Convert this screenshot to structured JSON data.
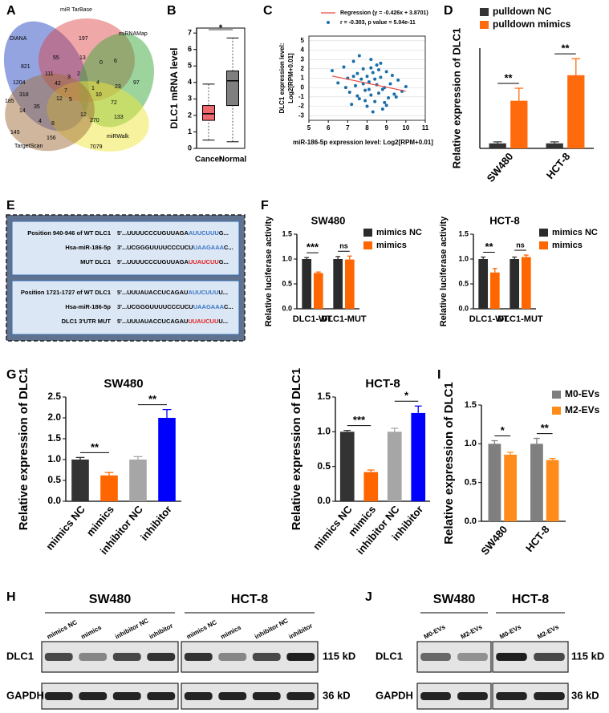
{
  "panel_labels": [
    "A",
    "B",
    "C",
    "D",
    "E",
    "F",
    "G",
    "H",
    "I",
    "J"
  ],
  "venn": {
    "sets": [
      "DIANA",
      "miR TarBase",
      "miRNAMap",
      "miRWalk",
      "TargetScan"
    ],
    "counts": [
      821,
      197,
      55,
      13,
      0,
      6,
      1204,
      111,
      2,
      4,
      97,
      23,
      42,
      3,
      7,
      1,
      185,
      318,
      5,
      10,
      72,
      14,
      35,
      12,
      4,
      8,
      12,
      270,
      133,
      145,
      156,
      7079
    ]
  },
  "sequences": [
    {
      "rows": [
        {
          "label": "Position 940-946 of WT DLC1",
          "parts": [
            "5'...UUUUCCCUGUUAGA",
            "AUUCUUU",
            "G..."
          ],
          "site_color": "#3a74c4"
        },
        {
          "label": "Hsa-miR-186-5p",
          "parts": [
            "3'...UCGGGUUUUCCCUCU",
            "UAAGAAA",
            "C..."
          ],
          "site_color": "#3a74c4"
        },
        {
          "label": "MUT DLC1",
          "parts": [
            "5'...UUUUCCCUGUUAGA",
            "UUAUCUU",
            "G..."
          ],
          "site_color": "#e02020"
        }
      ]
    },
    {
      "rows": [
        {
          "label": "Position 1721-1727 of WT DLC1",
          "parts": [
            "5'...UUUAUACCUCAGAU",
            "AUUCUUU",
            "U..."
          ],
          "site_color": "#3a74c4"
        },
        {
          "label": "Hsa-miR-186-5p",
          "parts": [
            "3'...UCGGGUUUUCCCUCU",
            "UAAGAAA",
            "C..."
          ],
          "site_color": "#3a74c4"
        },
        {
          "label": "DLC1 3'UTR MUT",
          "parts": [
            "5'...UUUAUACCUCAGAU",
            "UUAUCUU",
            "U..."
          ],
          "site_color": "#e02020"
        }
      ]
    }
  ],
  "chart_data": [
    {
      "type": "box",
      "ylabel": "DLC1 mRNA level",
      "categories": [
        "Cancer",
        "Normal"
      ],
      "colors": [
        "#f0696e",
        "#7f7f7f"
      ],
      "boxes": [
        {
          "min": 0.5,
          "q1": 1.7,
          "median": 2.1,
          "q3": 2.6,
          "max": 3.9
        },
        {
          "min": 0.4,
          "q1": 2.6,
          "median": 4.1,
          "q3": 4.7,
          "max": 6.7
        }
      ],
      "ylim": [
        0,
        7.3
      ],
      "yticks": [
        0,
        1,
        2,
        3,
        4,
        5,
        6,
        7
      ],
      "significance": "*",
      "significance_color": "#e02020"
    },
    {
      "type": "scatter",
      "xlabel": "miR-186-5p expression level: Log2[RPM+0.01]",
      "ylabel": [
        "DLC1 expression level:",
        "Log2[RPM+0.01]"
      ],
      "legend": [
        "Regression (y = -0.426x + 3.8701)",
        "r = -0.303, p value = 5.04e-11"
      ],
      "regression": {
        "slope": -0.426,
        "intercept": 3.8701,
        "color": "#e8473c"
      },
      "color": "#1a6fa8",
      "x": [
        6.2,
        6.5,
        6.8,
        7.0,
        7.1,
        7.3,
        7.4,
        7.5,
        7.6,
        7.7,
        7.8,
        7.9,
        8.0,
        8.0,
        8.1,
        8.2,
        8.2,
        8.3,
        8.4,
        8.5,
        8.5,
        8.6,
        8.7,
        8.8,
        8.9,
        9.0,
        9.1,
        9.2,
        9.4,
        9.6,
        9.8,
        10.0,
        7.2,
        7.6,
        7.9,
        8.3,
        8.6,
        8.9,
        9.3,
        6.9,
        7.5,
        8.1,
        8.7,
        9.0,
        7.8,
        8.4,
        8.8,
        7.3,
        9.5,
        8.2
      ],
      "y": [
        1.8,
        0.5,
        2.2,
        1.0,
        -0.5,
        2.8,
        0.2,
        1.5,
        -1.2,
        0.9,
        2.0,
        -0.3,
        1.2,
        -2.0,
        0.6,
        3.0,
        -0.8,
        1.6,
        -1.5,
        0.3,
        2.4,
        -0.6,
        1.1,
        -2.3,
        0.0,
        1.7,
        -1.1,
        0.4,
        -0.7,
        0.8,
        -0.4,
        0.1,
        -1.8,
        3.4,
        -1.4,
        -2.6,
        1.9,
        -1.6,
        1.3,
        0.0,
        -0.9,
        -0.2,
        2.6,
        -1.9,
        0.4,
        0.9,
        -0.2,
        1.2,
        -1.0,
        2.1
      ],
      "xlim": [
        5,
        11
      ],
      "xticks": [
        5,
        6,
        7,
        8,
        9,
        10,
        11
      ],
      "ylim": [
        -3.5,
        5.5
      ],
      "yticks": [
        -3,
        -2,
        -1,
        0,
        1,
        2,
        3,
        4,
        5
      ],
      "grid": true
    },
    {
      "type": "bar",
      "ylabel": "Relative expression of DLC1",
      "categories": [
        "SW480",
        "HCT-8"
      ],
      "series": [
        {
          "name": "pulldown NC",
          "color": "#333333",
          "values": [
            1.0,
            1.0
          ],
          "errors": [
            0.3,
            0.3
          ]
        },
        {
          "name": "pulldown mimics",
          "color": "#ff6a0d",
          "values": [
            9.5,
            14.6
          ],
          "errors": [
            2.5,
            3.3
          ]
        }
      ],
      "ylim": [
        0,
        20
      ],
      "significance": [
        "**",
        "**"
      ]
    },
    {
      "type": "bar",
      "title": "SW480",
      "ylabel": "Relative luciferase activity",
      "categories": [
        "DLC1-WT",
        "DLC1-MUT"
      ],
      "series": [
        {
          "name": "mimics NC",
          "color": "#2b2b2b",
          "values": [
            1.0,
            1.0
          ],
          "errors": [
            0.03,
            0.05
          ]
        },
        {
          "name": "mimics",
          "color": "#ff6600",
          "values": [
            0.72,
            0.99
          ],
          "errors": [
            0.02,
            0.07
          ]
        }
      ],
      "ylim": [
        0,
        1.5
      ],
      "yticks": [
        {
          "value": 0,
          "label": "0.0"
        },
        0.5,
        {
          "value": 1,
          "label": "1.0"
        },
        1.5
      ],
      "significance": [
        "***",
        "ns"
      ]
    },
    {
      "type": "bar",
      "title": "HCT-8",
      "ylabel": "Relative luciferase activity",
      "categories": [
        "DLC1-WT",
        "DLC1-MUT"
      ],
      "series": [
        {
          "name": "mimics NC",
          "color": "#2b2b2b",
          "values": [
            1.0,
            1.0
          ],
          "errors": [
            0.04,
            0.04
          ]
        },
        {
          "name": "mimics",
          "color": "#ff6600",
          "values": [
            0.73,
            1.04
          ],
          "errors": [
            0.08,
            0.04
          ]
        }
      ],
      "ylim": [
        0,
        1.5
      ],
      "yticks": [
        {
          "value": 0,
          "label": "0.0"
        },
        0.5,
        {
          "value": 1,
          "label": "1.0"
        },
        1.5
      ],
      "significance": [
        "**",
        "ns"
      ]
    },
    {
      "type": "bar",
      "title": "SW480",
      "ylabel": "Relative expression of DLC1",
      "categories": [
        "mimics NC",
        "mimics",
        "inhibitor NC",
        "inhibitor"
      ],
      "colors": [
        "#333333",
        "#ff6600",
        "#a6a6a6",
        "#0000ff"
      ],
      "values": [
        1.0,
        0.62,
        1.0,
        2.0
      ],
      "errors": [
        0.05,
        0.07,
        0.07,
        0.2
      ],
      "ylim": [
        0,
        2.5
      ],
      "yticks": [
        {
          "value": 0,
          "label": "0.0"
        },
        0.5,
        {
          "value": 1,
          "label": "1.0"
        },
        1.5,
        {
          "value": 2,
          "label": "2.0"
        },
        2.5
      ],
      "significance": [
        "**",
        "**"
      ]
    },
    {
      "type": "bar",
      "title": "HCT-8",
      "ylabel": "Relative expression of DLC1",
      "categories": [
        "mimics NC",
        "mimics",
        "inhibitor NC",
        "inhibitor"
      ],
      "colors": [
        "#333333",
        "#ff6600",
        "#a6a6a6",
        "#0000ff"
      ],
      "values": [
        1.0,
        0.42,
        1.0,
        1.27
      ],
      "errors": [
        0.02,
        0.03,
        0.05,
        0.1
      ],
      "ylim": [
        0,
        1.5
      ],
      "yticks": [
        {
          "value": 0,
          "label": "0.0"
        },
        0.5,
        {
          "value": 1,
          "label": "1.0"
        },
        1.5
      ],
      "significance": [
        "***",
        "*"
      ]
    },
    {
      "type": "bar",
      "ylabel": "Relative expression of DLC1",
      "categories": [
        "SW480",
        "HCT-8"
      ],
      "series": [
        {
          "name": "M0-EVs",
          "color": "#7f7f7f",
          "values": [
            1.0,
            1.0
          ],
          "errors": [
            0.04,
            0.07
          ]
        },
        {
          "name": "M2-EVs",
          "color": "#ff8c1a",
          "values": [
            0.86,
            0.79
          ],
          "errors": [
            0.03,
            0.02
          ]
        }
      ],
      "ylim": [
        0,
        1.5
      ],
      "yticks": [
        {
          "value": 0,
          "label": "0.0"
        },
        0.5,
        {
          "value": 1,
          "label": "1.0"
        },
        1.5
      ],
      "significance": [
        "*",
        "**"
      ]
    }
  ],
  "blots": [
    {
      "cell_lines": [
        "SW480",
        "HCT-8"
      ],
      "lanes": [
        "mimics NC",
        "mimics",
        "inhibitor NC",
        "inhibitor",
        "mimics NC",
        "mimics",
        "inhibitor NC",
        "inhibitor"
      ],
      "proteins": [
        "DLC1",
        "GAPDH"
      ],
      "sizes": [
        "115 kD",
        "36 kD"
      ]
    },
    {
      "cell_lines": [
        "SW480",
        "HCT-8"
      ],
      "lanes": [
        "M0-EVs",
        "M2-EVs",
        "M0-EVs",
        "M2-EVs"
      ],
      "proteins": [
        "DLC1",
        "GAPDH"
      ],
      "sizes": [
        "115 kD",
        "36 kD"
      ]
    }
  ]
}
